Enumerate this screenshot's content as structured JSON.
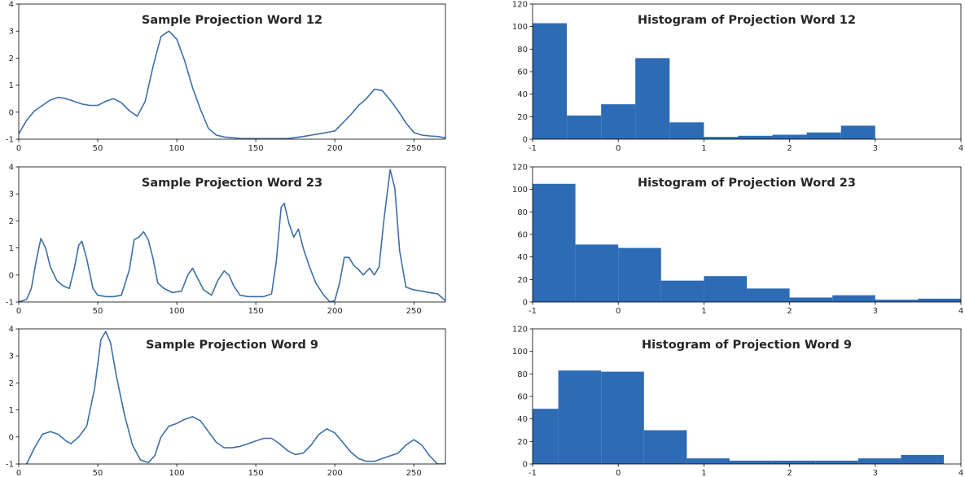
{
  "colors": {
    "line": "#3b6fa8",
    "bar": "#2e6bb5",
    "axis": "#000000",
    "text": "#262626"
  },
  "chart_data": [
    {
      "type": "line",
      "title": "Sample Projection Word 12",
      "xlim": [
        0,
        270
      ],
      "ylim": [
        -1,
        4
      ],
      "xticks": [
        0,
        50,
        100,
        150,
        200,
        250
      ],
      "yticks": [
        -1,
        0,
        1,
        2,
        3,
        4
      ],
      "grid": false,
      "x": [
        0,
        5,
        10,
        15,
        20,
        25,
        30,
        35,
        40,
        45,
        50,
        55,
        60,
        65,
        70,
        75,
        80,
        85,
        90,
        95,
        100,
        105,
        110,
        115,
        120,
        125,
        130,
        140,
        150,
        160,
        170,
        180,
        190,
        200,
        205,
        210,
        215,
        220,
        225,
        230,
        235,
        240,
        245,
        250,
        255,
        260,
        265,
        270
      ],
      "y": [
        -0.8,
        -0.3,
        0.05,
        0.25,
        0.45,
        0.55,
        0.5,
        0.4,
        0.3,
        0.25,
        0.25,
        0.4,
        0.5,
        0.35,
        0.05,
        -0.15,
        0.4,
        1.7,
        2.8,
        3.0,
        2.7,
        1.9,
        0.9,
        0.1,
        -0.6,
        -0.85,
        -0.92,
        -0.97,
        -0.98,
        -0.98,
        -0.98,
        -0.9,
        -0.8,
        -0.7,
        -0.4,
        -0.1,
        0.25,
        0.5,
        0.85,
        0.8,
        0.45,
        0.05,
        -0.4,
        -0.75,
        -0.85,
        -0.88,
        -0.9,
        -0.95
      ]
    },
    {
      "type": "bar",
      "title": "Histogram of Projection Word 12",
      "xlim": [
        -1,
        4
      ],
      "ylim": [
        0,
        120
      ],
      "xticks": [
        -1,
        0,
        1,
        2,
        3,
        4
      ],
      "yticks": [
        0,
        20,
        40,
        60,
        80,
        100,
        120
      ],
      "grid": false,
      "bin_edges": [
        -1.0,
        -0.6,
        -0.2,
        0.2,
        0.6,
        1.0,
        1.4,
        1.8,
        2.2,
        2.6,
        3.0
      ],
      "values": [
        103,
        21,
        31,
        72,
        15,
        2,
        3,
        4,
        6,
        12
      ]
    },
    {
      "type": "line",
      "title": "Sample Projection Word 23",
      "xlim": [
        0,
        270
      ],
      "ylim": [
        -1,
        4
      ],
      "xticks": [
        0,
        50,
        100,
        150,
        200,
        250
      ],
      "yticks": [
        -1,
        0,
        1,
        2,
        3,
        4
      ],
      "grid": false,
      "x": [
        0,
        5,
        8,
        11,
        14,
        17,
        20,
        24,
        28,
        32,
        35,
        38,
        40,
        43,
        47,
        50,
        55,
        60,
        65,
        70,
        73,
        76,
        79,
        82,
        85,
        88,
        92,
        97,
        103,
        107,
        110,
        113,
        117,
        122,
        126,
        130,
        133,
        136,
        140,
        145,
        150,
        155,
        160,
        163,
        166,
        168,
        171,
        174,
        177,
        180,
        184,
        188,
        193,
        197,
        200,
        203,
        206,
        209,
        212,
        215,
        218,
        222,
        225,
        228,
        231,
        235,
        238,
        241,
        245,
        250,
        255,
        260,
        265,
        270
      ],
      "y": [
        -1.0,
        -0.9,
        -0.5,
        0.5,
        1.35,
        1.0,
        0.3,
        -0.2,
        -0.4,
        -0.5,
        0.2,
        1.1,
        1.25,
        0.6,
        -0.5,
        -0.75,
        -0.8,
        -0.8,
        -0.75,
        0.2,
        1.3,
        1.4,
        1.6,
        1.3,
        0.6,
        -0.3,
        -0.5,
        -0.65,
        -0.6,
        0.0,
        0.25,
        -0.1,
        -0.55,
        -0.75,
        -0.2,
        0.15,
        0.0,
        -0.4,
        -0.75,
        -0.8,
        -0.8,
        -0.8,
        -0.7,
        0.5,
        2.5,
        2.65,
        1.9,
        1.4,
        1.7,
        1.0,
        0.3,
        -0.3,
        -0.75,
        -1.0,
        -0.95,
        -0.3,
        0.65,
        0.65,
        0.35,
        0.2,
        0.0,
        0.25,
        0.0,
        0.3,
        2.0,
        3.9,
        3.2,
        0.9,
        -0.45,
        -0.55,
        -0.6,
        -0.65,
        -0.7,
        -0.95
      ]
    },
    {
      "type": "bar",
      "title": "Histogram of Projection Word 23",
      "xlim": [
        -1,
        4
      ],
      "ylim": [
        0,
        120
      ],
      "xticks": [
        -1,
        0,
        1,
        2,
        3,
        4
      ],
      "yticks": [
        0,
        20,
        40,
        60,
        80,
        100,
        120
      ],
      "grid": false,
      "bin_edges": [
        -1.0,
        -0.5,
        0.0,
        0.5,
        1.0,
        1.5,
        2.0,
        2.5,
        3.0,
        3.5,
        4.0
      ],
      "values": [
        105,
        51,
        48,
        19,
        23,
        12,
        4,
        6,
        2,
        3
      ]
    },
    {
      "type": "line",
      "title": "Sample Projection Word 9",
      "xlim": [
        0,
        270
      ],
      "ylim": [
        -1,
        4
      ],
      "xticks": [
        0,
        50,
        100,
        150,
        200,
        250
      ],
      "yticks": [
        -1,
        0,
        1,
        2,
        3,
        4
      ],
      "grid": false,
      "x": [
        5,
        10,
        15,
        20,
        25,
        30,
        33,
        38,
        43,
        48,
        52,
        55,
        58,
        62,
        67,
        72,
        77,
        82,
        86,
        90,
        95,
        100,
        105,
        110,
        115,
        120,
        125,
        130,
        135,
        140,
        145,
        150,
        155,
        160,
        165,
        170,
        175,
        180,
        185,
        190,
        195,
        200,
        205,
        210,
        215,
        220,
        225,
        230,
        235,
        240,
        245,
        250,
        255,
        260,
        265,
        270
      ],
      "y": [
        -1.0,
        -0.4,
        0.1,
        0.2,
        0.1,
        -0.15,
        -0.25,
        0.0,
        0.4,
        1.8,
        3.6,
        3.9,
        3.5,
        2.2,
        0.8,
        -0.3,
        -0.85,
        -0.95,
        -0.7,
        0.0,
        0.4,
        0.5,
        0.65,
        0.75,
        0.6,
        0.2,
        -0.2,
        -0.4,
        -0.4,
        -0.35,
        -0.25,
        -0.15,
        -0.05,
        -0.05,
        -0.25,
        -0.5,
        -0.65,
        -0.6,
        -0.3,
        0.1,
        0.3,
        0.15,
        -0.2,
        -0.55,
        -0.8,
        -0.9,
        -0.9,
        -0.8,
        -0.7,
        -0.6,
        -0.3,
        -0.1,
        -0.3,
        -0.7,
        -1.0,
        -1.0
      ]
    },
    {
      "type": "bar",
      "title": "Histogram of Projection Word 9",
      "xlim": [
        -1,
        4
      ],
      "ylim": [
        0,
        120
      ],
      "xticks": [
        -1,
        0,
        1,
        2,
        3,
        4
      ],
      "yticks": [
        0,
        20,
        40,
        60,
        80,
        100,
        120
      ],
      "grid": false,
      "bin_edges": [
        -1.0,
        -0.7,
        -0.2,
        0.3,
        0.8,
        1.3,
        1.8,
        2.3,
        2.8,
        3.3,
        3.8
      ],
      "values": [
        49,
        83,
        82,
        30,
        5,
        3,
        3,
        3,
        5,
        8
      ]
    }
  ]
}
